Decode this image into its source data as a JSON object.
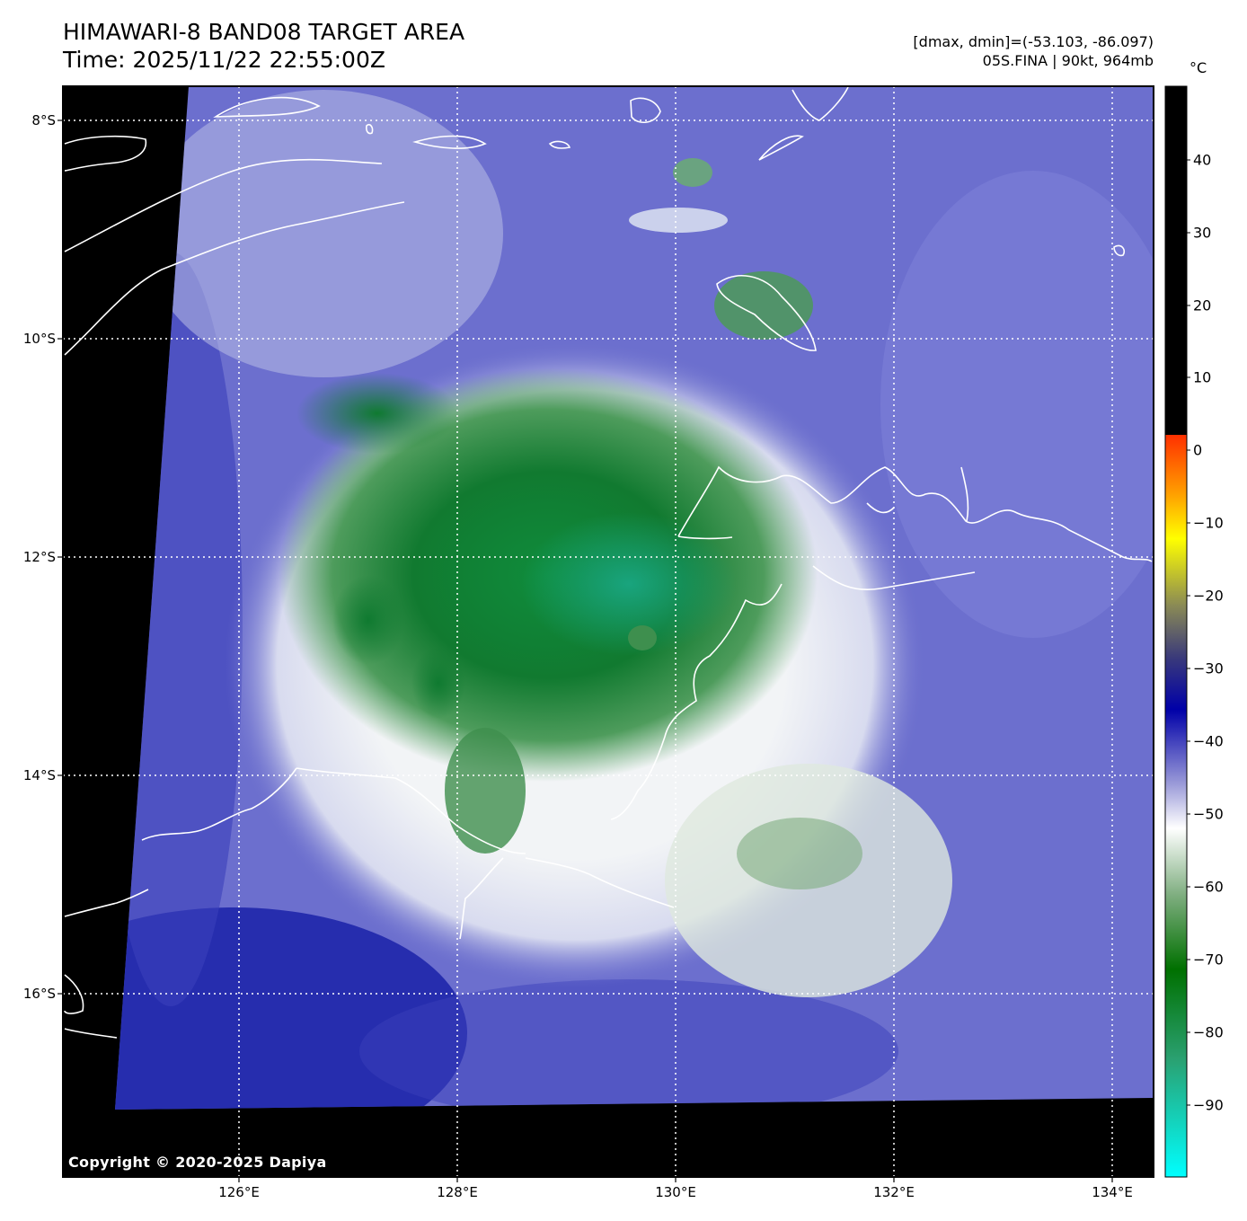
{
  "title_line1": "HIMAWARI-8 BAND08 TARGET AREA",
  "title_line2": "Time: 2025/11/22 22:55:00Z",
  "meta_line1": "[dmax, dmin]=(-53.103, -86.097)",
  "meta_line2": "05S.FINA | 90kt, 964mb",
  "unit": "°C",
  "copyright": "Copyright © 2020-2025 Dapiya",
  "lat_labels": [
    "8°S",
    "10°S",
    "12°S",
    "14°S",
    "16°S"
  ],
  "lon_labels": [
    "126°E",
    "128°E",
    "130°E",
    "132°E",
    "134°E"
  ],
  "colorbar_labels": [
    "40",
    "30",
    "20",
    "10",
    "0",
    "−10",
    "−20",
    "−30",
    "−40",
    "−50",
    "−60",
    "−70",
    "−80",
    "−90"
  ],
  "colors": {
    "cold_green": "#0a7a2a",
    "mid_green": "#4f9a5a",
    "white_band": "#f4f6f8",
    "blue_bg": "#6c6fce",
    "deep_blue": "#1a22a8",
    "cyan_core": "#1aa886",
    "coast": "#ffffff",
    "no_data": "#000000"
  }
}
